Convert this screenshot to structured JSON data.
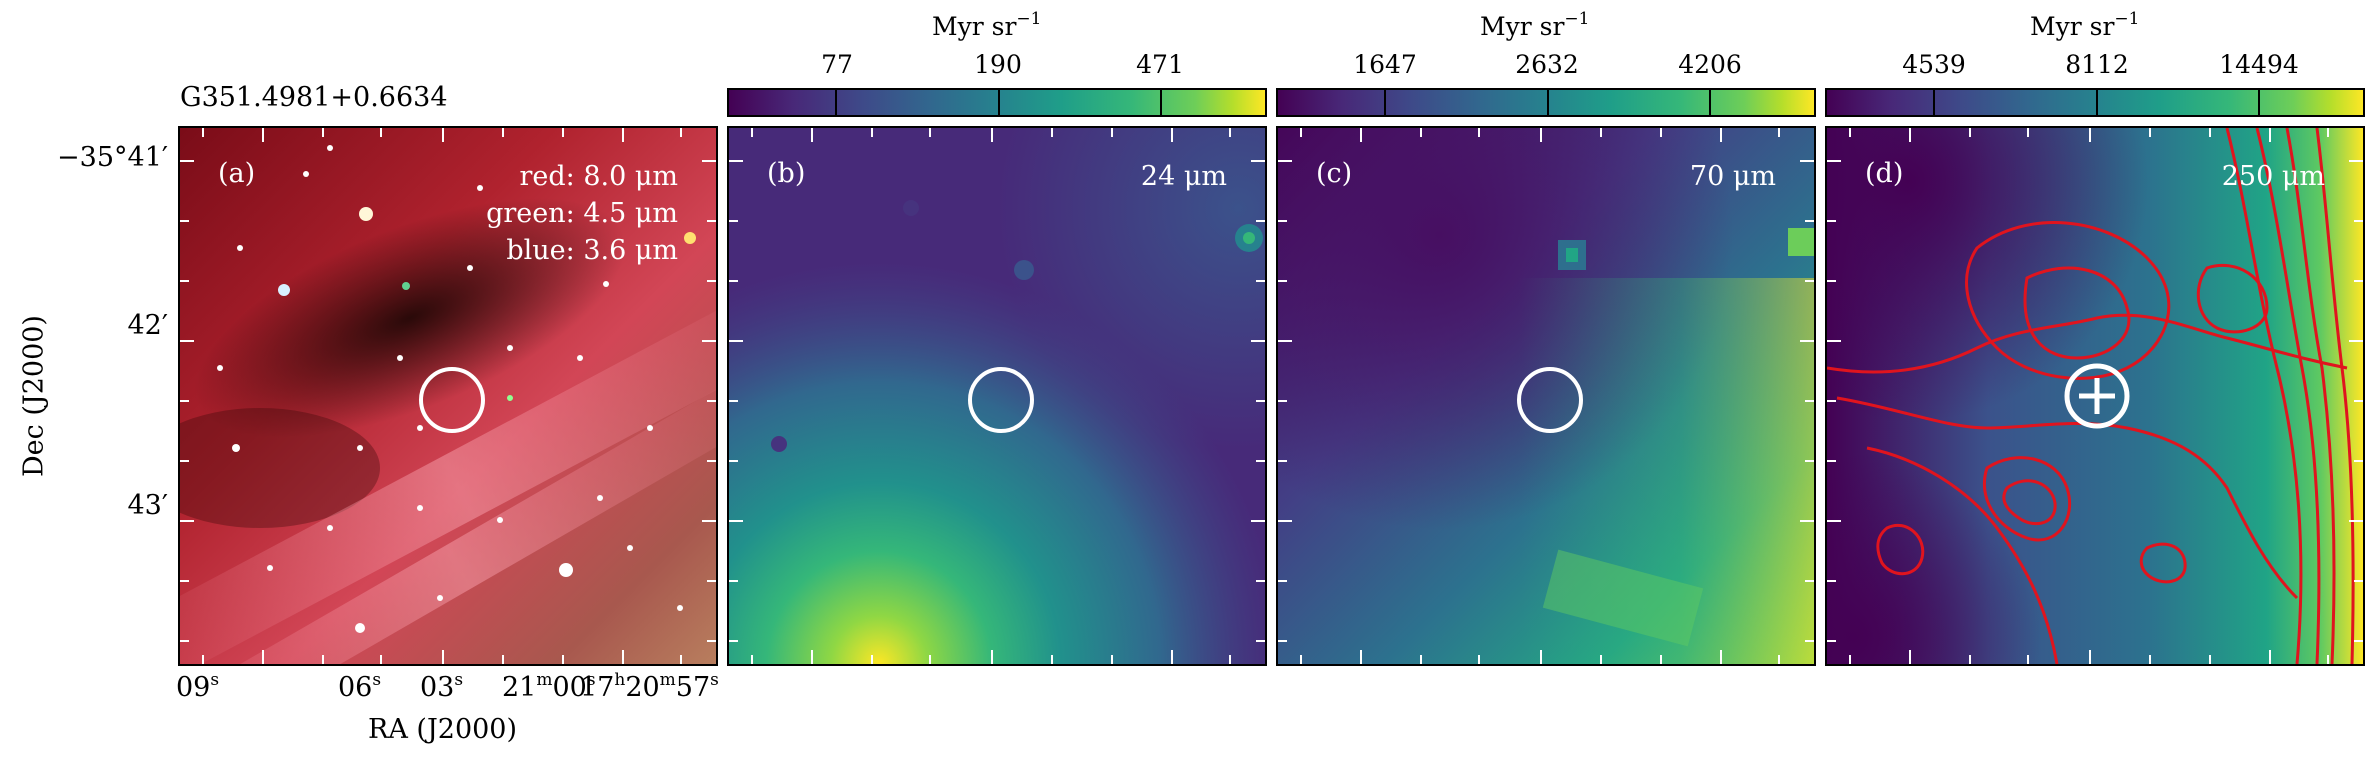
{
  "figure": {
    "source_name": "G351.4981+0.6634",
    "y_axis_label": "Dec (J2000)",
    "x_axis_label": "RA (J2000)",
    "dec_ticks": [
      "−35°41′",
      "42′",
      "43′"
    ],
    "ra_ticks": [
      {
        "base": "09",
        "sup": "s"
      },
      {
        "base": "06",
        "sup": "s"
      },
      {
        "base": "03",
        "sup": "s"
      },
      {
        "base": "21",
        "sup": "m",
        "tail": "00",
        "tail_sup": "s"
      },
      {
        "base": "17",
        "sup": "h",
        "mid": "20",
        "mid_sup": "m",
        "tail": "57",
        "tail_sup": "s"
      }
    ]
  },
  "panels": [
    {
      "id": "a",
      "label": "(a)",
      "lines": [
        "red: 8.0 μm",
        "green: 4.5 μm",
        "blue: 3.6 μm"
      ]
    },
    {
      "id": "b",
      "label": "(b)",
      "wavelength": "24 μm",
      "colorbar": {
        "unit": "Myr sr",
        "unit_exp": "−1",
        "ticks": [
          "77",
          "190",
          "471"
        ]
      }
    },
    {
      "id": "c",
      "label": "(c)",
      "wavelength": "70 μm",
      "colorbar": {
        "unit": "Myr sr",
        "unit_exp": "−1",
        "ticks": [
          "1647",
          "2632",
          "4206"
        ]
      }
    },
    {
      "id": "d",
      "label": "(d)",
      "wavelength": "250 μm",
      "colorbar": {
        "unit": "Myr sr",
        "unit_exp": "−1",
        "ticks": [
          "4539",
          "8112",
          "14494"
        ]
      }
    }
  ],
  "colors": {
    "contour": "#e0141e",
    "marker": "#ffffff",
    "frame": "#000000"
  },
  "colormap": "viridis"
}
